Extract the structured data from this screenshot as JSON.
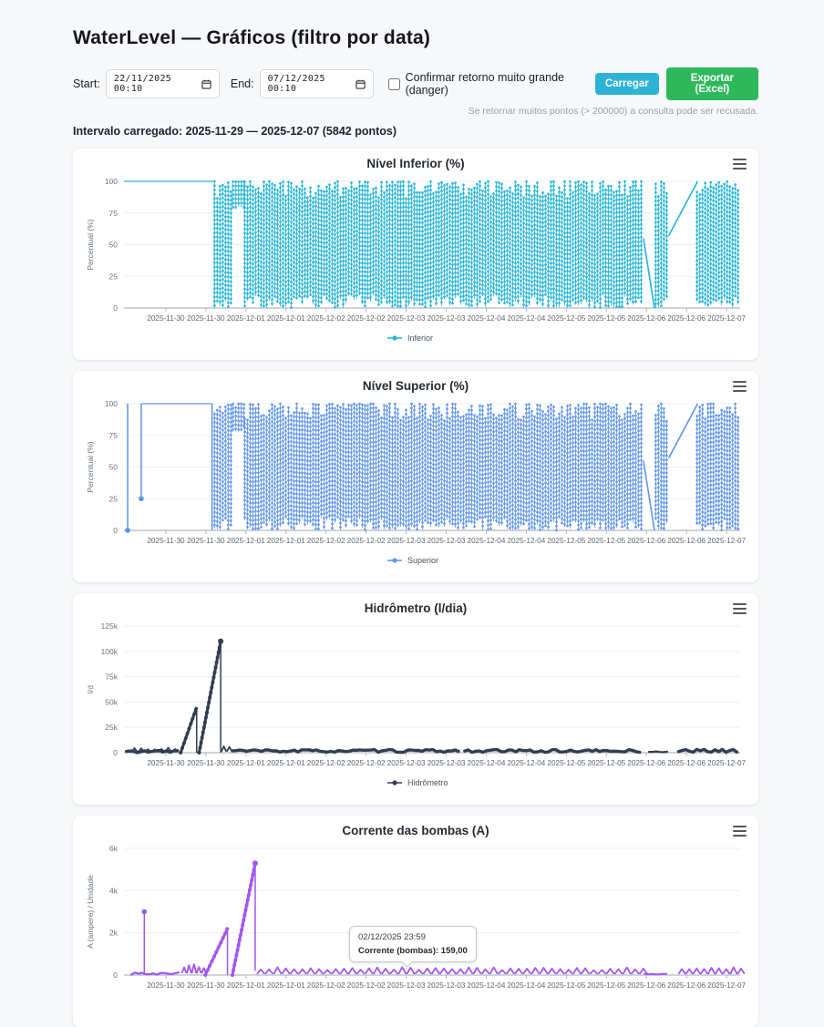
{
  "header": {
    "title": "WaterLevel — Gráficos (filtro por data)"
  },
  "controls": {
    "start_label": "Start:",
    "start_value": "22/11/2025 00:10",
    "end_label": "End:",
    "end_value": "07/12/2025 00:10",
    "checkbox_label": "Confirmar retorno muito grande (danger)",
    "load_button": "Carregar",
    "export_button": "Exportar (Excel)",
    "hint": "Se retornar muitos pontos (> 200000) a consulta pode ser recusada."
  },
  "interval_text": "Intervalo carregado: 2025-11-29 — 2025-12-07 (5842 pontos)",
  "tooltip": {
    "date": "02/12/2025 23:59",
    "text": "Corrente (bombas): 159,00"
  },
  "chart_data": [
    {
      "type": "line",
      "title": "Nível Inferior (%)",
      "ylabel": "Percentual (%)",
      "legend": "Inferior",
      "color": "#22b4d6",
      "ylim": [
        0,
        100
      ],
      "yticks": [
        0,
        25,
        50,
        75,
        100
      ],
      "ytick_labels": [
        "0",
        "25",
        "50",
        "75",
        "100"
      ],
      "xtick_labels": [
        "2025-11-30",
        "2025-11-30",
        "2025-12-01",
        "2025-12-01",
        "2025-12-02",
        "2025-12-02",
        "2025-12-03",
        "2025-12-03",
        "2025-12-04",
        "2025-12-04",
        "2025-12-05",
        "2025-12-05",
        "2025-12-06",
        "2025-12-06",
        "2025-12-07"
      ],
      "segments": [
        {
          "kind": "flat",
          "x0": 0.0,
          "x1": 0.145,
          "y": 100
        },
        {
          "kind": "dense",
          "x0": 0.147,
          "x1": 0.177,
          "ymin": 0,
          "ymax": 100
        },
        {
          "kind": "dense",
          "x0": 0.177,
          "x1": 0.196,
          "ymin": 78,
          "ymax": 100
        },
        {
          "kind": "dense",
          "x0": 0.196,
          "x1": 0.843,
          "ymin": 0,
          "ymax": 100
        },
        {
          "kind": "ramp",
          "x0": 0.843,
          "x1": 0.861,
          "y0": 55,
          "y1": 0
        },
        {
          "kind": "dense",
          "x0": 0.863,
          "x1": 0.881,
          "ymin": 0,
          "ymax": 100
        },
        {
          "kind": "ramp",
          "x0": 0.884,
          "x1": 0.931,
          "y0": 57,
          "y1": 100
        },
        {
          "kind": "dense",
          "x0": 0.93,
          "x1": 1.0,
          "ymin": 0,
          "ymax": 100
        }
      ]
    },
    {
      "type": "line",
      "title": "Nível Superior (%)",
      "ylabel": "Percentual (%)",
      "legend": "Superior",
      "color": "#5f94ec",
      "ylim": [
        0,
        100
      ],
      "yticks": [
        0,
        25,
        50,
        75,
        100
      ],
      "ytick_labels": [
        "0",
        "25",
        "50",
        "75",
        "100"
      ],
      "xtick_labels": [
        "2025-11-30",
        "2025-11-30",
        "2025-12-01",
        "2025-12-01",
        "2025-12-02",
        "2025-12-02",
        "2025-12-03",
        "2025-12-03",
        "2025-12-04",
        "2025-12-04",
        "2025-12-05",
        "2025-12-05",
        "2025-12-06",
        "2025-12-06",
        "2025-12-07"
      ],
      "segments": [
        {
          "kind": "vline",
          "x": 0.006,
          "y0": 100,
          "y1": 0,
          "dot": 0
        },
        {
          "kind": "vline",
          "x": 0.028,
          "y0": 100,
          "y1": 25,
          "dot": 25
        },
        {
          "kind": "flat",
          "x0": 0.028,
          "x1": 0.143,
          "y": 100
        },
        {
          "kind": "vline",
          "x": 0.143,
          "y0": 100,
          "y1": 0
        },
        {
          "kind": "dense",
          "x0": 0.147,
          "x1": 0.177,
          "ymin": 0,
          "ymax": 100
        },
        {
          "kind": "dense",
          "x0": 0.177,
          "x1": 0.196,
          "ymin": 78,
          "ymax": 100
        },
        {
          "kind": "dense",
          "x0": 0.196,
          "x1": 0.843,
          "ymin": 0,
          "ymax": 100
        },
        {
          "kind": "ramp",
          "x0": 0.843,
          "x1": 0.861,
          "y0": 55,
          "y1": 0
        },
        {
          "kind": "dense",
          "x0": 0.863,
          "x1": 0.881,
          "ymin": 0,
          "ymax": 100
        },
        {
          "kind": "ramp",
          "x0": 0.884,
          "x1": 0.931,
          "y0": 57,
          "y1": 100
        },
        {
          "kind": "dense",
          "x0": 0.93,
          "x1": 1.0,
          "ymin": 0,
          "ymax": 100
        }
      ]
    },
    {
      "type": "line",
      "title": "Hidrômetro (l/dia)",
      "ylabel": "l/d",
      "legend": "Hidrômetro",
      "color": "#313d52",
      "ylim": [
        0,
        125000
      ],
      "yticks": [
        0,
        25000,
        50000,
        75000,
        100000,
        125000
      ],
      "ytick_labels": [
        "0",
        "25k",
        "50k",
        "75k",
        "100k",
        "125k"
      ],
      "xtick_labels": [
        "2025-11-30",
        "2025-11-30",
        "2025-12-01",
        "2025-12-01",
        "2025-12-02",
        "2025-12-02",
        "2025-12-03",
        "2025-12-03",
        "2025-12-04",
        "2025-12-04",
        "2025-12-05",
        "2025-12-05",
        "2025-12-06",
        "2025-12-06",
        "2025-12-07"
      ],
      "segments": [
        {
          "kind": "band",
          "x0": 0.004,
          "x1": 0.09,
          "y": 1100,
          "amp": 2400,
          "width": 3.4
        },
        {
          "kind": "bumps",
          "x0": 0.012,
          "x1": 0.088,
          "base": 600,
          "peak": 4200,
          "period": 0.011
        },
        {
          "kind": "ramp",
          "x0": 0.092,
          "x1": 0.118,
          "y0": 0,
          "y1": 45000,
          "width": 3,
          "dots": true
        },
        {
          "kind": "vline",
          "x": 0.118,
          "y0": 45000,
          "y1": 0
        },
        {
          "kind": "ramp",
          "x0": 0.122,
          "x1": 0.157,
          "y0": 0,
          "y1": 110000,
          "width": 3,
          "dots": true,
          "dot_end": true
        },
        {
          "kind": "vline",
          "x": 0.157,
          "y0": 110000,
          "y1": 0
        },
        {
          "kind": "bumps",
          "x0": 0.158,
          "x1": 0.176,
          "base": 1200,
          "peak": 5500,
          "period": 0.009
        },
        {
          "kind": "band",
          "x0": 0.176,
          "x1": 0.545,
          "y": 1700,
          "amp": 2800,
          "width": 3.4
        },
        {
          "kind": "band",
          "x0": 0.553,
          "x1": 0.84,
          "y": 1700,
          "amp": 2800,
          "width": 3.4
        },
        {
          "kind": "band",
          "x0": 0.852,
          "x1": 0.886,
          "y": 900,
          "amp": 900,
          "width": 2.2
        },
        {
          "kind": "band",
          "x0": 0.9,
          "x1": 1.0,
          "y": 1900,
          "amp": 3000,
          "width": 3.4
        }
      ]
    },
    {
      "type": "line",
      "title": "Corrente das bombas (A)",
      "ylabel": "A (ampere) / Unidade",
      "legend": null,
      "color": "#a056f0",
      "ylim": [
        0,
        6000
      ],
      "yticks": [
        0,
        2000,
        4000,
        6000
      ],
      "ytick_labels": [
        "0",
        "2k",
        "4k",
        "6k"
      ],
      "xtick_labels": [
        "2025-11-30",
        "2025-11-30",
        "2025-12-01",
        "2025-12-01",
        "2025-12-02",
        "2025-12-02",
        "2025-12-03",
        "2025-12-03",
        "2025-12-04",
        "2025-12-04",
        "2025-12-05",
        "2025-12-05",
        "2025-12-06",
        "2025-12-06",
        "2025-12-07"
      ],
      "segments": [
        {
          "kind": "band",
          "x0": 0.012,
          "x1": 0.094,
          "y": 70,
          "amp": 110,
          "width": 2.2
        },
        {
          "kind": "vline",
          "x": 0.033,
          "y0": 0,
          "y1": 3000,
          "dot": 3000
        },
        {
          "kind": "bumps",
          "x0": 0.094,
          "x1": 0.132,
          "base": 80,
          "peak": 430,
          "period": 0.008
        },
        {
          "kind": "ramp",
          "x0": 0.132,
          "x1": 0.168,
          "y0": 0,
          "y1": 2200,
          "width": 3,
          "dots": true
        },
        {
          "kind": "vline",
          "x": 0.168,
          "y0": 2200,
          "y1": 0
        },
        {
          "kind": "ramp",
          "x0": 0.176,
          "x1": 0.213,
          "y0": 0,
          "y1": 5300,
          "width": 3,
          "dots": true,
          "dot_end": true
        },
        {
          "kind": "vline",
          "x": 0.213,
          "y0": 5300,
          "y1": 200
        },
        {
          "kind": "bumps",
          "x0": 0.216,
          "x1": 0.845,
          "base": 50,
          "peak": 300,
          "period": 0.0135
        },
        {
          "kind": "band",
          "x0": 0.845,
          "x1": 0.885,
          "y": 40,
          "amp": 60,
          "width": 2
        },
        {
          "kind": "bumps",
          "x0": 0.9,
          "x1": 0.998,
          "base": 50,
          "peak": 300,
          "period": 0.012
        }
      ]
    }
  ]
}
